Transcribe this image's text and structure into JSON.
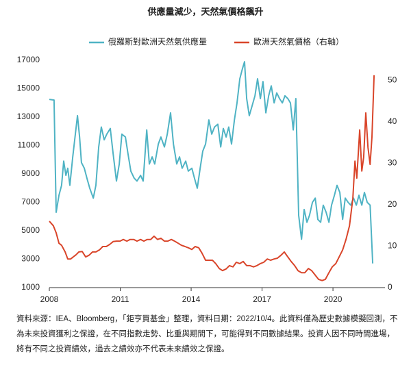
{
  "chart_data": {
    "type": "line",
    "title": "供應量減少，天然氣價格飆升",
    "xlim": [
      2008,
      2022.2
    ],
    "xticks": [
      2008,
      2011,
      2014,
      2017,
      2020
    ],
    "ylim": [
      1000,
      17000
    ],
    "yticks": [
      1000,
      3000,
      5000,
      7000,
      9000,
      11000,
      13000,
      15000,
      17000
    ],
    "y2lim": [
      0,
      54.8
    ],
    "y2ticks": [
      0,
      10,
      20,
      30,
      40,
      50
    ],
    "legend": "top",
    "series": [
      {
        "name": "俄羅斯對歐洲天然氣供應量",
        "color": "#4fb3c4",
        "x": [
          2008.0,
          2008.2,
          2008.29,
          2008.41,
          2008.52,
          2008.61,
          2008.7,
          2008.78,
          2008.87,
          2008.99,
          2009.1,
          2009.19,
          2009.28,
          2009.36,
          2009.48,
          2009.59,
          2009.71,
          2009.86,
          2009.97,
          2010.09,
          2010.2,
          2010.32,
          2010.43,
          2010.58,
          2010.7,
          2010.84,
          2010.96,
          2011.07,
          2011.22,
          2011.33,
          2011.45,
          2011.59,
          2011.71,
          2011.86,
          2011.97,
          2012.12,
          2012.23,
          2012.35,
          2012.46,
          2012.61,
          2012.72,
          2012.87,
          2012.99,
          2013.13,
          2013.25,
          2013.39,
          2013.51,
          2013.62,
          2013.77,
          2013.88,
          2014.03,
          2014.14,
          2014.26,
          2014.38,
          2014.49,
          2014.61,
          2014.75,
          2014.87,
          2014.99,
          2015.13,
          2015.25,
          2015.36,
          2015.48,
          2015.59,
          2015.71,
          2015.83,
          2015.94,
          2016.06,
          2016.17,
          2016.26,
          2016.35,
          2016.46,
          2016.58,
          2016.7,
          2016.81,
          2016.93,
          2017.04,
          2017.16,
          2017.28,
          2017.39,
          2017.51,
          2017.62,
          2017.74,
          2017.86,
          2017.97,
          2018.09,
          2018.2,
          2018.32,
          2018.43,
          2018.55,
          2018.67,
          2018.78,
          2018.9,
          2019.01,
          2019.13,
          2019.25,
          2019.36,
          2019.48,
          2019.59,
          2019.71,
          2019.83,
          2019.94,
          2020.06,
          2020.17,
          2020.29,
          2020.41,
          2020.52,
          2020.64,
          2020.75,
          2020.87,
          2020.99,
          2021.1,
          2021.22,
          2021.33,
          2021.45,
          2021.57,
          2021.68
        ],
        "values": [
          14250,
          14200,
          6300,
          7500,
          8200,
          9900,
          8900,
          9400,
          8200,
          10200,
          11800,
          13100,
          11600,
          9800,
          9400,
          8700,
          8000,
          7300,
          8200,
          10900,
          12300,
          11400,
          11800,
          12200,
          10400,
          8500,
          9700,
          11800,
          11600,
          10400,
          9200,
          8700,
          8500,
          8900,
          8500,
          12100,
          9700,
          10200,
          9700,
          11100,
          11600,
          10900,
          11800,
          13300,
          11100,
          9700,
          10200,
          9400,
          9900,
          9200,
          9400,
          8700,
          8000,
          9400,
          10600,
          11100,
          12800,
          11800,
          12300,
          12500,
          10900,
          12200,
          11600,
          12300,
          11100,
          12800,
          14000,
          15700,
          16400,
          16900,
          14300,
          13100,
          13800,
          14500,
          15700,
          14300,
          15500,
          13300,
          14500,
          15200,
          14000,
          14700,
          14300,
          14000,
          14500,
          14300,
          14000,
          12100,
          14300,
          6100,
          4400,
          6500,
          5600,
          6100,
          7000,
          7300,
          5800,
          5600,
          6800,
          6300,
          5600,
          6800,
          7500,
          8200,
          7700,
          5800,
          7300,
          7000,
          6800,
          7300,
          6800,
          7500,
          6800,
          7700,
          7000,
          6800,
          2700
        ]
      },
      {
        "name": "歐洲天然氣價格（右軸）",
        "color": "#d9452a",
        "axis": "y2",
        "x": [
          2008.0,
          2008.17,
          2008.29,
          2008.41,
          2008.52,
          2008.67,
          2008.78,
          2008.9,
          2009.01,
          2009.13,
          2009.25,
          2009.39,
          2009.54,
          2009.68,
          2009.83,
          2009.97,
          2010.12,
          2010.26,
          2010.41,
          2010.55,
          2010.7,
          2010.84,
          2010.99,
          2011.13,
          2011.28,
          2011.42,
          2011.57,
          2011.71,
          2011.86,
          2012.0,
          2012.14,
          2012.29,
          2012.43,
          2012.58,
          2012.72,
          2012.87,
          2013.01,
          2013.16,
          2013.3,
          2013.45,
          2013.59,
          2013.74,
          2013.88,
          2014.03,
          2014.17,
          2014.32,
          2014.46,
          2014.61,
          2014.75,
          2014.9,
          2015.04,
          2015.19,
          2015.33,
          2015.48,
          2015.62,
          2015.77,
          2015.91,
          2016.06,
          2016.2,
          2016.35,
          2016.49,
          2016.64,
          2016.78,
          2016.93,
          2017.07,
          2017.22,
          2017.36,
          2017.51,
          2017.65,
          2017.8,
          2017.94,
          2018.09,
          2018.23,
          2018.38,
          2018.52,
          2018.67,
          2018.81,
          2018.96,
          2019.1,
          2019.25,
          2019.39,
          2019.54,
          2019.68,
          2019.83,
          2019.97,
          2020.12,
          2020.26,
          2020.41,
          2020.55,
          2020.7,
          2020.84,
          2020.93,
          2021.01,
          2021.13,
          2021.22,
          2021.3,
          2021.39,
          2021.48,
          2021.57,
          2021.65,
          2021.74
        ],
        "values": [
          16,
          14.9,
          13.2,
          10.7,
          10.2,
          8.6,
          6.9,
          6.9,
          7.4,
          7.9,
          8.6,
          8.7,
          7.4,
          7.8,
          8.6,
          8.6,
          9.1,
          9.9,
          9.9,
          10.4,
          11.1,
          11.2,
          11.2,
          11.6,
          11.2,
          11.6,
          11.6,
          11.2,
          11.6,
          11.2,
          11.6,
          11.6,
          12.4,
          11.6,
          11.9,
          11.2,
          11.2,
          11.6,
          11.2,
          10.7,
          10.2,
          9.9,
          9.6,
          9.2,
          9.9,
          9.6,
          8.3,
          6.6,
          6.6,
          6.6,
          5.8,
          4.6,
          4.1,
          4.5,
          5.3,
          5.0,
          6.1,
          5.8,
          6.3,
          5.3,
          5.3,
          5.0,
          5.3,
          5.8,
          6.1,
          6.9,
          6.6,
          6.9,
          7.1,
          7.8,
          8.6,
          7.4,
          6.3,
          5.3,
          4.1,
          3.6,
          3.6,
          4.6,
          4.1,
          3.0,
          2.0,
          1.7,
          2.0,
          3.6,
          5.0,
          5.8,
          7.4,
          9.1,
          11.6,
          14.9,
          21.5,
          30.5,
          26.4,
          38.0,
          28.1,
          31.4,
          42.1,
          33.8,
          29.7,
          36.3,
          51.2
        ]
      }
    ],
    "footnote": "資料來源：IEA、Bloomberg，「鉅亨買基金」整理，資料日期：2022/10/4。此資料僅為歷史數據模擬回測，不為未來投資獲利之保證，在不同指數走勢、比重與期間下，可能得到不同數據結果。投資人因不同時間進場，將有不同之投資績效，過去之績效亦不代表未來績效之保證。"
  }
}
